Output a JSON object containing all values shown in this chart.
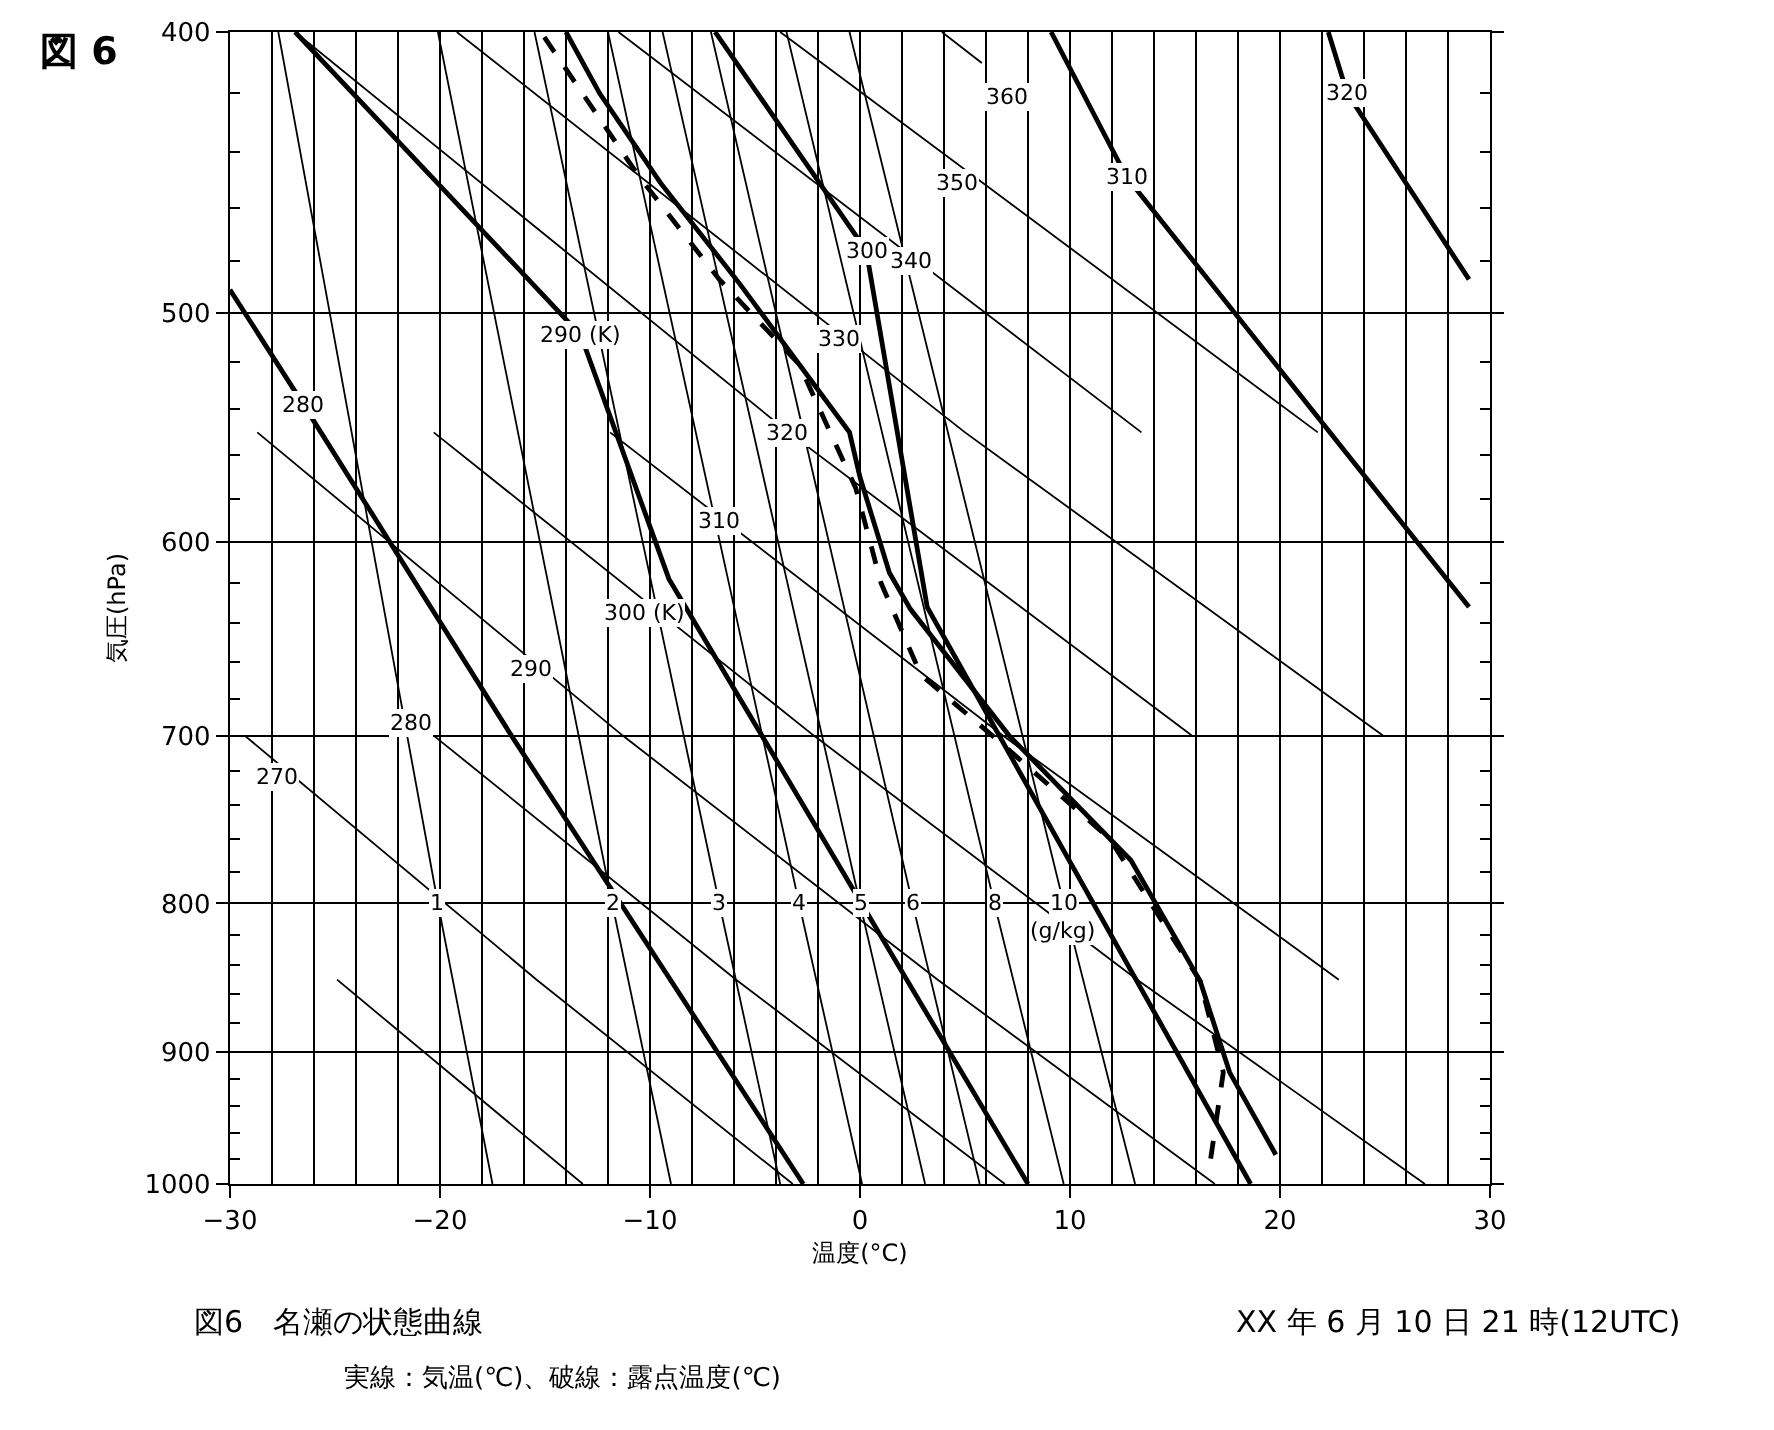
{
  "chart_data": {
    "type": "line",
    "title": "図 6",
    "xlabel": "温度(°C)",
    "ylabel": "気圧(hPa)",
    "log": "y",
    "grid": true,
    "marker": "none",
    "xlim": [
      -30,
      30
    ],
    "ylim": [
      1000,
      400
    ],
    "xticks": [
      {
        "value": -30,
        "label": "−30"
      },
      {
        "value": -28,
        "label": null
      },
      {
        "value": -26,
        "label": null
      },
      {
        "value": -24,
        "label": null
      },
      {
        "value": -22,
        "label": null
      },
      {
        "value": -20,
        "label": "−20"
      },
      {
        "value": -18,
        "label": null
      },
      {
        "value": -16,
        "label": null
      },
      {
        "value": -14,
        "label": null
      },
      {
        "value": -12,
        "label": null
      },
      {
        "value": -10,
        "label": "−10"
      },
      {
        "value": -8,
        "label": null
      },
      {
        "value": -6,
        "label": null
      },
      {
        "value": -4,
        "label": null
      },
      {
        "value": -2,
        "label": null
      },
      0,
      {
        "value": 2,
        "label": null
      },
      {
        "value": 4,
        "label": null
      },
      {
        "value": 6,
        "label": null
      },
      {
        "value": 8,
        "label": null
      },
      10,
      {
        "value": 12,
        "label": null
      },
      {
        "value": 14,
        "label": null
      },
      {
        "value": 16,
        "label": null
      },
      {
        "value": 18,
        "label": null
      },
      20,
      {
        "value": 22,
        "label": null
      },
      {
        "value": 24,
        "label": null
      },
      {
        "value": 26,
        "label": null
      },
      {
        "value": 28,
        "label": null
      },
      30
    ],
    "yticks": [
      400,
      {
        "value": 420,
        "label": null
      },
      {
        "value": 440,
        "label": null
      },
      {
        "value": 460,
        "label": null
      },
      {
        "value": 480,
        "label": null
      },
      500,
      {
        "value": 520,
        "label": null
      },
      {
        "value": 540,
        "label": null
      },
      {
        "value": 560,
        "label": null
      },
      {
        "value": 580,
        "label": null
      },
      600,
      {
        "value": 620,
        "label": null
      },
      {
        "value": 640,
        "label": null
      },
      {
        "value": 660,
        "label": null
      },
      {
        "value": 680,
        "label": null
      },
      700,
      {
        "value": 720,
        "label": null
      },
      {
        "value": 740,
        "label": null
      },
      {
        "value": 760,
        "label": null
      },
      {
        "value": 780,
        "label": null
      },
      800,
      {
        "value": 820,
        "label": null
      },
      {
        "value": 840,
        "label": null
      },
      {
        "value": 860,
        "label": null
      },
      {
        "value": 880,
        "label": null
      },
      900,
      {
        "value": 920,
        "label": null
      },
      {
        "value": 940,
        "label": null
      },
      {
        "value": 960,
        "label": null
      },
      {
        "value": 980,
        "label": null
      },
      1000
    ],
    "series": [
      {
        "color": "#000000",
        "x": [
          -13.2,
          -24.9
        ],
        "values": [
          1000,
          850
        ]
      },
      {
        "color": "#000000",
        "x": [
          -3.2,
          -15.4,
          -29.3
        ],
        "values": [
          1000,
          850,
          700
        ]
      },
      {
        "color": "#000000",
        "x": [
          6.9,
          -5.9,
          -20.3
        ],
        "values": [
          1000,
          850,
          700
        ]
      },
      {
        "color": "#000000",
        "x": [
          16.9,
          3.7,
          -11.3,
          -28.7
        ],
        "values": [
          1000,
          850,
          700,
          550
        ]
      },
      {
        "color": "#000000",
        "x": [
          26.9,
          13.2,
          -2.2,
          -20.3
        ],
        "values": [
          1000,
          850,
          700,
          550
        ]
      },
      {
        "color": "#000000",
        "x": [
          22.8,
          6.8,
          -11.9
        ],
        "values": [
          850,
          700,
          550
        ]
      },
      {
        "color": "#000000",
        "x": [
          15.8,
          -3.4,
          -26.9
        ],
        "values": [
          700,
          550,
          400
        ]
      },
      {
        "color": "#000000",
        "x": [
          24.9,
          5.0,
          -19.2
        ],
        "values": [
          700,
          550,
          400
        ]
      },
      {
        "color": "#000000",
        "x": [
          13.4,
          -11.5
        ],
        "values": [
          550,
          400
        ]
      },
      {
        "color": "#000000",
        "x": [
          21.8,
          -3.8
        ],
        "values": [
          550,
          400
        ]
      },
      {
        "color": "#000000",
        "x": [
          5.8,
          3.9
        ],
        "values": [
          410,
          400
        ]
      },
      {
        "color": "#000000",
        "x": [
          -17.5,
          -20.1,
          -27.7
        ],
        "values": [
          1000,
          800,
          400
        ]
      },
      {
        "color": "#000000",
        "x": [
          -9.0,
          -11.8,
          -20.1
        ],
        "values": [
          1000,
          800,
          400
        ]
      },
      {
        "color": "#000000",
        "x": [
          -3.8,
          -6.7,
          -15.5
        ],
        "values": [
          1000,
          800,
          400
        ]
      },
      {
        "color": "#000000",
        "x": [
          0.1,
          -2.9,
          -12.0
        ],
        "values": [
          1000,
          800,
          400
        ]
      },
      {
        "color": "#000000",
        "x": [
          3.1,
          0.0,
          -9.4
        ],
        "values": [
          1000,
          800,
          400
        ]
      },
      {
        "color": "#000000",
        "x": [
          5.7,
          2.5,
          -7.1
        ],
        "values": [
          1000,
          800,
          400
        ]
      },
      {
        "color": "#000000",
        "x": [
          9.7,
          6.4,
          -3.5
        ],
        "values": [
          1000,
          800,
          400
        ]
      },
      {
        "color": "#000000",
        "x": [
          13.1,
          9.7,
          -0.5
        ],
        "values": [
          1000,
          800,
          400
        ]
      },
      {
        "color": "#000000",
        "line_style": "solid",
        "x": [
          -2.7,
          -16.6,
          -26.5,
          -30
        ],
        "values": [
          1000,
          700,
          538,
          491
        ]
      },
      {
        "color": "#000000",
        "line_style": "solid",
        "x": [
          8.0,
          -9.1,
          -13.3,
          -26.9
        ],
        "values": [
          1000,
          618,
          509,
          400
        ]
      },
      {
        "color": "#000000",
        "line_style": "solid",
        "x": [
          18.6,
          3.2,
          0.3,
          -6.9
        ],
        "values": [
          1000,
          632,
          476,
          400
        ]
      },
      {
        "color": "#000000",
        "line_style": "solid",
        "x": [
          29.0,
          12.7,
          9.1
        ],
        "values": [
          632,
          449,
          400
        ]
      },
      {
        "color": "#000000",
        "line_style": "solid",
        "x": [
          29.0,
          23.2,
          22.3
        ],
        "values": [
          487,
          420,
          400
        ]
      },
      {
        "color": "#000000",
        "line_style": "solid",
        "x": [
          19.8,
          17.6,
          16.2,
          12.9,
          7.1,
          2.4,
          1.4,
          0,
          -0.5,
          -2.9,
          -5.7,
          -9.5,
          -12.4,
          -14.0
        ],
        "values": [
          977,
          915,
          851,
          773,
          700,
          633,
          615,
          570,
          550,
          521,
          489,
          451,
          420,
          400
        ]
      },
      {
        "color": "#000000",
        "line_style": "dashed",
        "x": [
          16.7,
          17.3,
          16.2,
          11.9,
          6.7,
          2.9,
          1.0,
          -0.2,
          -2.9,
          -6.7,
          -10.5,
          -15.2
        ],
        "values": [
          980,
          915,
          851,
          760,
          704,
          667,
          620,
          575,
          521,
          487,
          449,
          400
        ]
      }
    ],
    "annotations": [
      {
        "text": "270",
        "x": -27.8,
        "y": 723
      },
      {
        "text": "280",
        "x": -21.4,
        "y": 693
      },
      {
        "text": "290",
        "x": -15.7,
        "y": 664
      },
      {
        "text": "300 (K)",
        "x": -10.3,
        "y": 635
      },
      {
        "text": "310",
        "x": -6.7,
        "y": 590
      },
      {
        "text": "320",
        "x": -3.5,
        "y": 550
      },
      {
        "text": "330",
        "x": -1.0,
        "y": 511
      },
      {
        "text": "340",
        "x": 2.4,
        "y": 480
      },
      {
        "text": "350",
        "x": 4.6,
        "y": 451
      },
      {
        "text": "360",
        "x": 7.0,
        "y": 421
      },
      {
        "text": "280",
        "x": -26.5,
        "y": 538
      },
      {
        "text": "290 (K)",
        "x": -13.3,
        "y": 509
      },
      {
        "text": "300",
        "x": 0.3,
        "y": 476
      },
      {
        "text": "310",
        "x": 12.7,
        "y": 449
      },
      {
        "text": "320",
        "x": 23.2,
        "y": 420
      },
      {
        "text": "1",
        "x": -20.1,
        "y": 800
      },
      {
        "text": "2",
        "x": -11.8,
        "y": 800
      },
      {
        "text": "3",
        "x": -6.7,
        "y": 800
      },
      {
        "text": "4",
        "x": -2.9,
        "y": 800
      },
      {
        "text": "5",
        "x": 0.0,
        "y": 800
      },
      {
        "text": "6",
        "x": 2.5,
        "y": 800
      },
      {
        "text": "8",
        "x": 6.4,
        "y": 800
      },
      {
        "text": "10",
        "x": 9.7,
        "y": 800
      },
      {
        "text": "(g/kg)",
        "x": 9.7,
        "y": 818
      },
      "図6　名瀬の状態曲線",
      "XX 年 6 月 10 日 21 時(12UTC)",
      "実線：気温(℃)、破線：露点温度(℃)"
    ]
  }
}
